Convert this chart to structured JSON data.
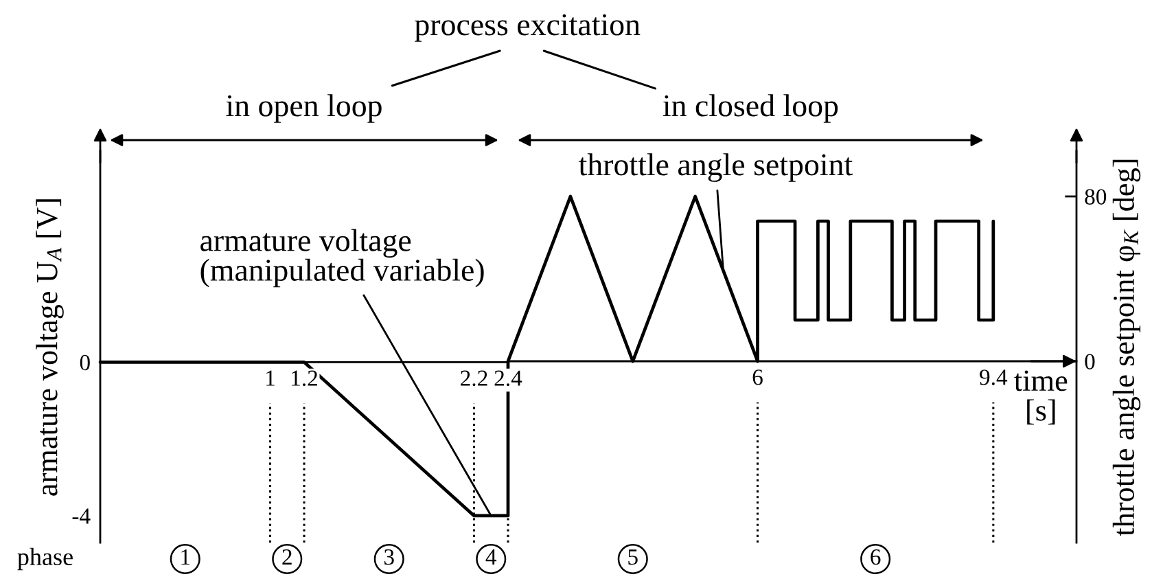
{
  "chart_data": [
    {
      "type": "line",
      "title": "process excitation",
      "ylabel": "armature voltage U$_{A}$ [V]",
      "series": [
        {
          "name": "armature voltage\n(manipulated variable)",
          "color": "#000000",
          "x": [
            0,
            1.2,
            2.2,
            2.4,
            2.4
          ],
          "values": [
            0,
            0,
            -4,
            -4,
            0
          ]
        }
      ],
      "xlim": [
        0,
        2.4
      ],
      "xticks": [
        1,
        1.2,
        2.2,
        2.4
      ],
      "ylim": [
        -4.7,
        5.5
      ],
      "yticks": [
        -4,
        0
      ],
      "grid": false,
      "ref_lines": [
        {
          "axis": "x",
          "value": 1,
          "color": "#000000",
          "line_style": "dotted"
        },
        {
          "axis": "x",
          "value": 1.2,
          "color": "#000000",
          "line_style": "dotted"
        },
        {
          "axis": "x",
          "value": 2.2,
          "color": "#000000",
          "line_style": "dotted"
        },
        {
          "axis": "x",
          "value": 2.4,
          "color": "#000000",
          "line_style": "dotted"
        }
      ],
      "annotations": [
        "in open loop",
        "phase",
        "1",
        "2",
        "3",
        "4"
      ]
    },
    {
      "type": "line",
      "xlabel": "time [s]",
      "y2label": "throttle angle setpoint φ$_{K}$ [deg]",
      "series": [
        {
          "name": "throttle angle setpoint",
          "color": "#000000",
          "axis": "y2",
          "x": [
            2.4,
            3.3,
            4.2,
            5.1,
            6,
            6,
            6.54,
            6.54,
            6.87,
            6.87,
            7.02,
            7.02,
            7.34,
            7.34,
            7.94,
            7.94,
            8.12,
            8.12,
            8.27,
            8.27,
            8.57,
            8.57,
            9.19,
            9.19,
            9.4,
            9.4
          ],
          "values": [
            0,
            80,
            0,
            80,
            0,
            68,
            68,
            20,
            20,
            68,
            68,
            20,
            20,
            68,
            68,
            20,
            20,
            68,
            68,
            20,
            20,
            68,
            68,
            20,
            20,
            68
          ]
        }
      ],
      "xlim": [
        2.4,
        10.6
      ],
      "xticks": [
        6,
        9.4
      ],
      "y2lim": [
        -88,
        102
      ],
      "y2ticks": [
        0,
        80
      ],
      "grid": false,
      "ref_lines": [
        {
          "axis": "x",
          "value": 6,
          "color": "#000000",
          "line_style": "dotted"
        },
        {
          "axis": "x",
          "value": 9.4,
          "color": "#000000",
          "line_style": "dotted"
        }
      ],
      "annotations": [
        "in closed loop",
        "5",
        "6"
      ]
    }
  ]
}
